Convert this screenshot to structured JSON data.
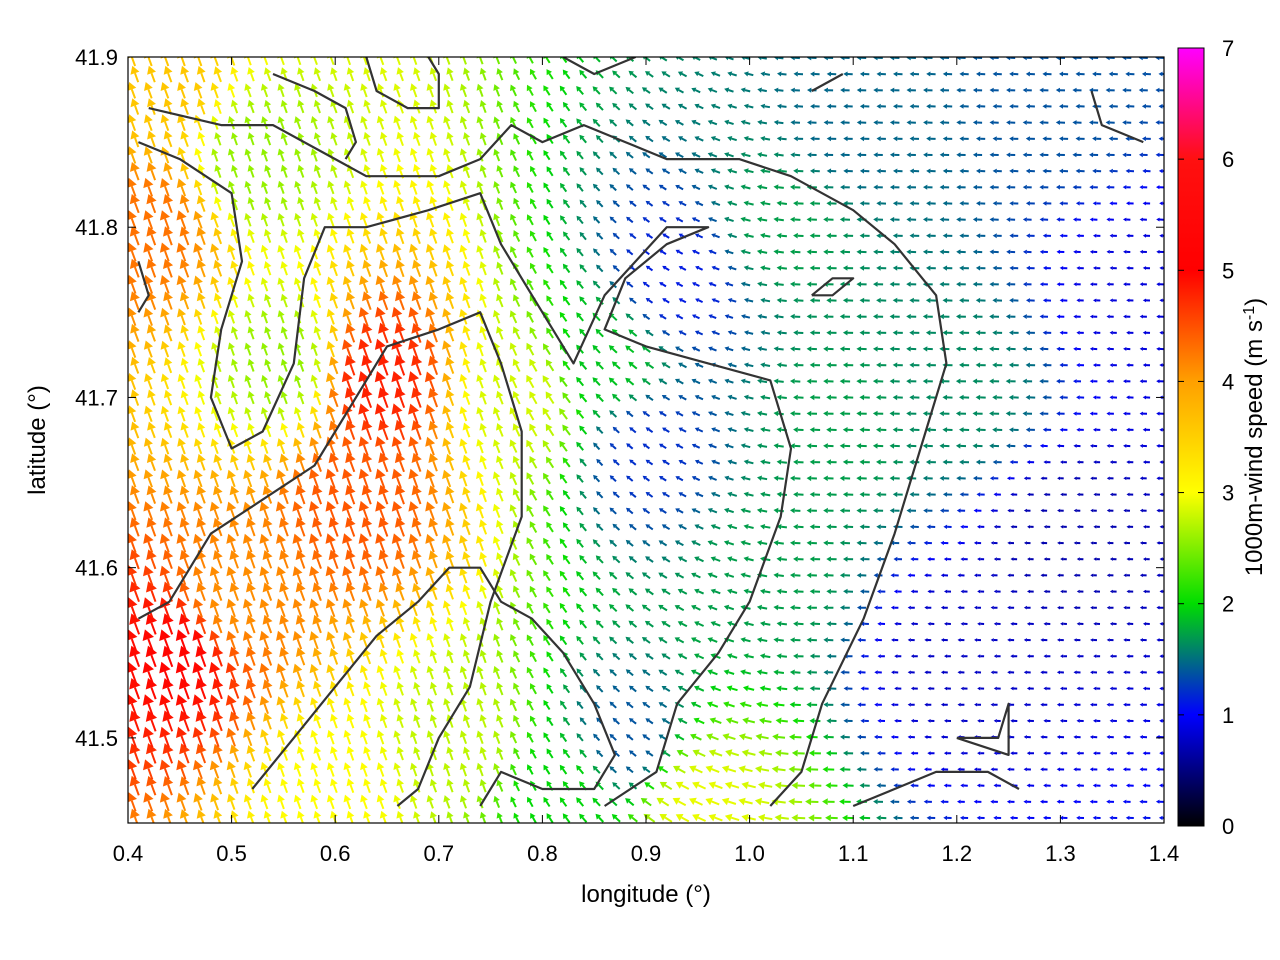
{
  "chart_data": {
    "type": "vector-field",
    "xlabel": "longitude (°)",
    "ylabel": "latitude (°)",
    "xlim": [
      0.4,
      1.4
    ],
    "ylim": [
      41.45,
      41.9
    ],
    "x_ticks": [
      "0.4",
      "0.5",
      "0.6",
      "0.7",
      "0.8",
      "0.9",
      "1.0",
      "1.1",
      "1.2",
      "1.3",
      "1.4"
    ],
    "y_ticks": [
      "41.5",
      "41.6",
      "41.7",
      "41.8",
      "41.9"
    ],
    "colorbar": {
      "label_main": "1000m-wind speed (m s",
      "label_sup": "-1",
      "label_end": ")",
      "range": [
        0,
        7
      ],
      "ticks": [
        "0",
        "1",
        "2",
        "3",
        "4",
        "5",
        "6",
        "7"
      ],
      "colors": [
        "#000000",
        "#0000ff",
        "#00dd00",
        "#ffff00",
        "#ffa000",
        "#ff0000",
        "#ff00ff"
      ]
    },
    "wind_regions": [
      {
        "lon": 0.64,
        "lat": 41.71,
        "speed": 5.6
      },
      {
        "lon": 0.62,
        "lat": 41.64,
        "speed": 5.2
      },
      {
        "lon": 0.45,
        "lat": 41.55,
        "speed": 5.8
      },
      {
        "lon": 0.42,
        "lat": 41.8,
        "speed": 5.0
      },
      {
        "lon": 0.43,
        "lat": 41.88,
        "speed": 4.2
      },
      {
        "lon": 0.5,
        "lat": 41.58,
        "speed": 4.8
      },
      {
        "lon": 0.78,
        "lat": 41.7,
        "speed": 3.3
      },
      {
        "lon": 0.55,
        "lat": 41.72,
        "speed": 3.0
      },
      {
        "lon": 0.52,
        "lat": 41.84,
        "speed": 3.0
      },
      {
        "lon": 0.86,
        "lat": 41.72,
        "speed": 2.2
      },
      {
        "lon": 0.93,
        "lat": 41.77,
        "speed": 1.3
      },
      {
        "lon": 0.9,
        "lat": 41.67,
        "speed": 1.4
      },
      {
        "lon": 1.03,
        "lat": 41.8,
        "speed": 2.0
      },
      {
        "lon": 1.08,
        "lat": 41.68,
        "speed": 2.0
      },
      {
        "lon": 1.02,
        "lat": 41.6,
        "speed": 2.0
      },
      {
        "lon": 0.88,
        "lat": 41.5,
        "speed": 1.6
      },
      {
        "lon": 1.1,
        "lat": 41.86,
        "speed": 1.7
      },
      {
        "lon": 1.3,
        "lat": 41.88,
        "speed": 1.6
      },
      {
        "lon": 1.3,
        "lat": 41.62,
        "speed": 0.8
      },
      {
        "lon": 1.2,
        "lat": 41.55,
        "speed": 0.9
      },
      {
        "lon": 1.2,
        "lat": 41.7,
        "speed": 1.9
      },
      {
        "lon": 0.82,
        "lat": 41.47,
        "speed": 2.3
      },
      {
        "lon": 0.95,
        "lat": 41.46,
        "speed": 3.4
      },
      {
        "lon": 0.72,
        "lat": 41.5,
        "speed": 3.2
      },
      {
        "lon": 0.6,
        "lat": 41.47,
        "speed": 3.5
      },
      {
        "lon": 1.38,
        "lat": 41.76,
        "speed": 1.0
      }
    ],
    "contours": [
      [
        [
          0.42,
          41.87
        ],
        [
          0.49,
          41.86
        ],
        [
          0.54,
          41.86
        ],
        [
          0.6,
          41.84
        ],
        [
          0.63,
          41.83
        ],
        [
          0.7,
          41.83
        ],
        [
          0.74,
          41.84
        ],
        [
          0.77,
          41.86
        ],
        [
          0.8,
          41.85
        ],
        [
          0.84,
          41.86
        ],
        [
          0.88,
          41.85
        ],
        [
          0.92,
          41.84
        ],
        [
          0.99,
          41.84
        ],
        [
          1.04,
          41.83
        ],
        [
          1.1,
          41.81
        ],
        [
          1.14,
          41.79
        ],
        [
          1.18,
          41.76
        ],
        [
          1.19,
          41.72
        ],
        [
          1.17,
          41.68
        ],
        [
          1.14,
          41.62
        ],
        [
          1.11,
          41.57
        ],
        [
          1.07,
          41.52
        ],
        [
          1.05,
          41.48
        ],
        [
          1.02,
          41.46
        ]
      ],
      [
        [
          0.41,
          41.85
        ],
        [
          0.45,
          41.84
        ],
        [
          0.5,
          41.82
        ],
        [
          0.51,
          41.78
        ],
        [
          0.49,
          41.74
        ],
        [
          0.48,
          41.7
        ],
        [
          0.5,
          41.67
        ],
        [
          0.53,
          41.68
        ],
        [
          0.56,
          41.72
        ],
        [
          0.57,
          41.77
        ],
        [
          0.59,
          41.8
        ],
        [
          0.63,
          41.8
        ],
        [
          0.69,
          41.81
        ],
        [
          0.74,
          41.82
        ],
        [
          0.76,
          41.79
        ],
        [
          0.79,
          41.76
        ],
        [
          0.83,
          41.72
        ],
        [
          0.86,
          41.76
        ],
        [
          0.92,
          41.8
        ],
        [
          0.96,
          41.8
        ],
        [
          0.92,
          41.79
        ],
        [
          0.88,
          41.77
        ],
        [
          0.86,
          41.74
        ],
        [
          0.9,
          41.73
        ],
        [
          0.96,
          41.72
        ],
        [
          1.02,
          41.71
        ],
        [
          1.04,
          41.67
        ],
        [
          1.03,
          41.63
        ],
        [
          1.0,
          41.58
        ],
        [
          0.97,
          41.55
        ],
        [
          0.93,
          41.52
        ],
        [
          0.91,
          41.48
        ],
        [
          0.86,
          41.46
        ]
      ],
      [
        [
          0.41,
          41.57
        ],
        [
          0.44,
          41.58
        ],
        [
          0.48,
          41.62
        ],
        [
          0.53,
          41.64
        ],
        [
          0.58,
          41.66
        ],
        [
          0.61,
          41.69
        ],
        [
          0.65,
          41.73
        ],
        [
          0.7,
          41.74
        ],
        [
          0.74,
          41.75
        ],
        [
          0.76,
          41.72
        ],
        [
          0.78,
          41.68
        ],
        [
          0.78,
          41.63
        ],
        [
          0.75,
          41.58
        ],
        [
          0.73,
          41.53
        ],
        [
          0.7,
          41.5
        ],
        [
          0.68,
          41.47
        ],
        [
          0.66,
          41.46
        ]
      ],
      [
        [
          0.52,
          41.47
        ],
        [
          0.56,
          41.5
        ],
        [
          0.6,
          41.53
        ],
        [
          0.64,
          41.56
        ],
        [
          0.68,
          41.58
        ],
        [
          0.71,
          41.6
        ],
        [
          0.74,
          41.6
        ],
        [
          0.76,
          41.58
        ],
        [
          0.79,
          41.57
        ],
        [
          0.82,
          41.55
        ],
        [
          0.85,
          41.52
        ],
        [
          0.87,
          41.49
        ],
        [
          0.85,
          41.47
        ],
        [
          0.8,
          41.47
        ],
        [
          0.76,
          41.48
        ],
        [
          0.74,
          41.46
        ]
      ],
      [
        [
          0.54,
          41.89
        ],
        [
          0.58,
          41.88
        ],
        [
          0.61,
          41.87
        ],
        [
          0.62,
          41.85
        ],
        [
          0.61,
          41.84
        ]
      ],
      [
        [
          0.63,
          41.9
        ],
        [
          0.64,
          41.88
        ],
        [
          0.67,
          41.87
        ],
        [
          0.7,
          41.87
        ],
        [
          0.7,
          41.89
        ],
        [
          0.69,
          41.9
        ]
      ],
      [
        [
          0.82,
          41.9
        ],
        [
          0.85,
          41.89
        ],
        [
          0.89,
          41.9
        ]
      ],
      [
        [
          1.06,
          41.88
        ],
        [
          1.09,
          41.89
        ]
      ],
      [
        [
          1.33,
          41.88
        ],
        [
          1.34,
          41.86
        ],
        [
          1.38,
          41.85
        ]
      ],
      [
        [
          1.06,
          41.76
        ],
        [
          1.08,
          41.77
        ],
        [
          1.1,
          41.77
        ],
        [
          1.08,
          41.76
        ],
        [
          1.06,
          41.76
        ]
      ],
      [
        [
          1.1,
          41.46
        ],
        [
          1.14,
          41.47
        ],
        [
          1.18,
          41.48
        ],
        [
          1.23,
          41.48
        ],
        [
          1.26,
          41.47
        ]
      ],
      [
        [
          1.2,
          41.5
        ],
        [
          1.24,
          41.5
        ],
        [
          1.25,
          41.52
        ],
        [
          1.25,
          41.49
        ],
        [
          1.2,
          41.5
        ]
      ],
      [
        [
          0.41,
          41.78
        ],
        [
          0.42,
          41.76
        ],
        [
          0.41,
          41.75
        ]
      ]
    ]
  }
}
